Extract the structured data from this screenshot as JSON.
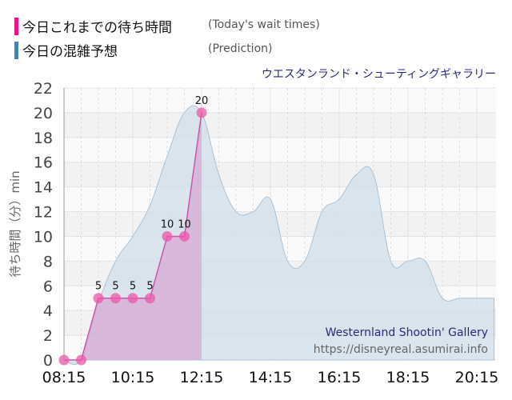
{
  "legend": [
    {
      "label_jp": "今日これまでの待ち時間",
      "label_en": "(Today's wait times)",
      "color": "#ee1188"
    },
    {
      "label_jp": "今日の混雑予想",
      "label_en": "(Prediction)",
      "color": "#4a7fb0"
    }
  ],
  "attraction_title": "ウエスタンランド・シューティングギャラリー",
  "credit": {
    "name": "Westernland Shootin' Gallery",
    "url": "https://disneyreal.asumirai.info"
  },
  "chart_data": {
    "type": "area",
    "title": "ウエスタンランド・シューティングギャラリー",
    "xlabel": "",
    "ylabel": "待ち時間（分）min",
    "ylim": [
      0,
      22
    ],
    "yticks": [
      0,
      2,
      4,
      6,
      8,
      10,
      12,
      14,
      16,
      18,
      20,
      22
    ],
    "xticks": [
      "08:15",
      "10:15",
      "12:15",
      "14:15",
      "16:15",
      "18:15",
      "20:15"
    ],
    "grid": true,
    "legend_position": "top-left",
    "series": [
      {
        "name": "今日これまでの待ち時間 (Today's wait times)",
        "type": "area-line-markers",
        "color": "#ee1188",
        "x": [
          "08:15",
          "08:45",
          "09:15",
          "09:45",
          "10:15",
          "10:45",
          "11:15",
          "11:45",
          "12:15"
        ],
        "values": [
          0,
          0,
          5,
          5,
          5,
          5,
          10,
          10,
          20
        ],
        "data_labels": [
          "",
          "",
          "5",
          "5",
          "5",
          "5",
          "10",
          "10",
          "20"
        ]
      },
      {
        "name": "今日の混雑予想 (Prediction)",
        "type": "smooth-area",
        "color": "#4a7fb0",
        "x": [
          "08:15",
          "08:45",
          "09:15",
          "09:45",
          "10:15",
          "10:45",
          "11:15",
          "11:45",
          "12:15",
          "12:45",
          "13:15",
          "13:45",
          "14:15",
          "14:45",
          "15:15",
          "15:45",
          "16:15",
          "16:45",
          "17:15",
          "17:45",
          "18:15",
          "18:45",
          "19:15",
          "19:45",
          "20:15",
          "20:45"
        ],
        "values": [
          0,
          0,
          4.6,
          8,
          10,
          12.5,
          16.5,
          20,
          20,
          15,
          12,
          12,
          13,
          8,
          8,
          12,
          13,
          15,
          15,
          8,
          8,
          8,
          5,
          5,
          5,
          5
        ]
      }
    ]
  }
}
